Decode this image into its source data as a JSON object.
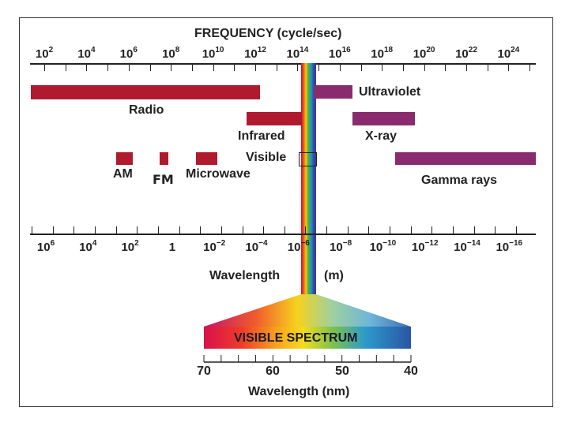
{
  "title": "FREQUENCY (cycle/sec)",
  "frequency_ticks": [
    {
      "base": "10",
      "exp": "2"
    },
    {
      "base": "10",
      "exp": "4"
    },
    {
      "base": "10",
      "exp": "6"
    },
    {
      "base": "10",
      "exp": "8"
    },
    {
      "base": "10",
      "exp": "10"
    },
    {
      "base": "10",
      "exp": "12"
    },
    {
      "base": "10",
      "exp": "14"
    },
    {
      "base": "10",
      "exp": "16"
    },
    {
      "base": "10",
      "exp": "18"
    },
    {
      "base": "10",
      "exp": "20"
    },
    {
      "base": "10",
      "exp": "22"
    },
    {
      "base": "10",
      "exp": "24"
    }
  ],
  "wavelength_ticks": [
    {
      "base": "10",
      "exp": "6"
    },
    {
      "base": "10",
      "exp": "4"
    },
    {
      "base": "10",
      "exp": "2"
    },
    {
      "base": "1",
      "exp": ""
    },
    {
      "base": "10",
      "exp": "−2"
    },
    {
      "base": "10",
      "exp": "−4"
    },
    {
      "base": "10",
      "exp": "−6"
    },
    {
      "base": "10",
      "exp": "−8"
    },
    {
      "base": "10",
      "exp": "−10"
    },
    {
      "base": "10",
      "exp": "−12"
    },
    {
      "base": "10",
      "exp": "−14"
    },
    {
      "base": "10",
      "exp": "−16"
    }
  ],
  "bands": {
    "radio": "Radio",
    "am": "AM",
    "fm": "FM",
    "microwave": "Microwave",
    "infrared": "Infrared",
    "visible": "Visible",
    "ultraviolet": "Ultraviolet",
    "xray": "X-ray",
    "gamma": "Gamma rays"
  },
  "wavelength_label": "Wavelength",
  "wavelength_unit": "(m)",
  "visible_spectrum": {
    "title": "VISIBLE SPECTRUM",
    "ticks": [
      "70",
      "60",
      "50",
      "40"
    ],
    "axis_label": "Wavelength (nm)"
  },
  "colors": {
    "radio_band": "#b01a2f",
    "high_energy_band": "#8a2b6f"
  }
}
